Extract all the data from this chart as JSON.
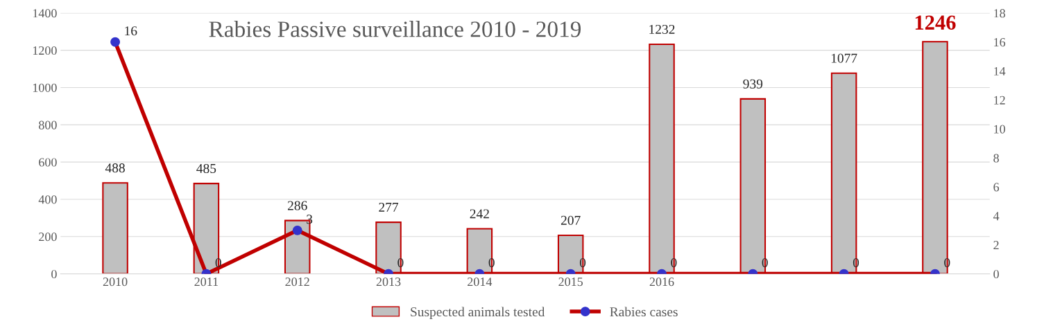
{
  "chart_data": {
    "type": "bar",
    "title": "Rabies Passive surveillance 2010 - 2019",
    "categories": [
      "2010",
      "2011",
      "2012",
      "2013",
      "2014",
      "2015",
      "2016",
      null,
      null,
      null
    ],
    "series": [
      {
        "name": "Suspected animals tested",
        "color": "#c0c0c0",
        "values": [
          488,
          485,
          286,
          277,
          242,
          207,
          1232,
          939,
          1077,
          1246
        ]
      },
      {
        "name": "Rabies cases",
        "type": "line",
        "axis": "y2",
        "color": "#c00000",
        "values": [
          16,
          0,
          3,
          0,
          0,
          0,
          0,
          0,
          0,
          0
        ]
      }
    ],
    "ylim": [
      0,
      1400
    ],
    "yticks": [
      0,
      200,
      400,
      600,
      800,
      1000,
      1200,
      1400
    ],
    "y2lim": [
      0,
      18
    ],
    "y2ticks": [
      0,
      2,
      4,
      6,
      8,
      10,
      12,
      14,
      16,
      18
    ],
    "data_labels": true,
    "grid": "y",
    "legend": "bottom",
    "marker": "circle",
    "line_style": "solid"
  }
}
